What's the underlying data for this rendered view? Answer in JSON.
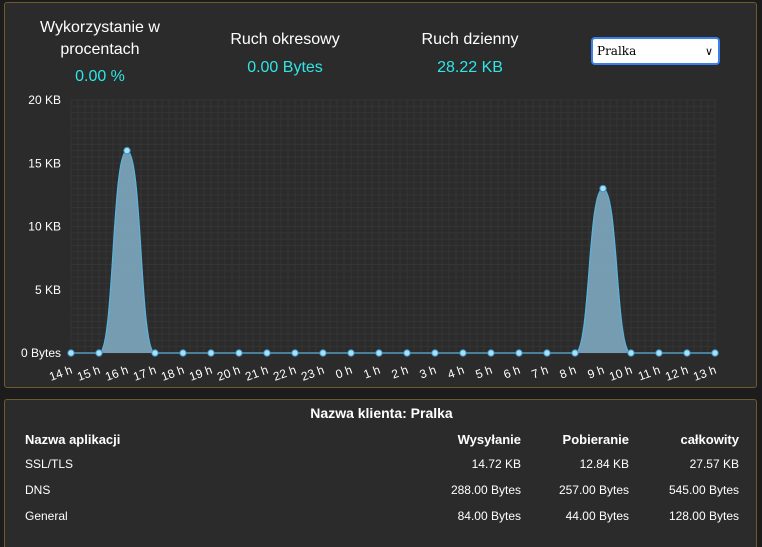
{
  "stats": {
    "percent_label": "Wykorzystanie w procentach",
    "percent_value": "0.00 %",
    "period_label": "Ruch okresowy",
    "period_value": "0.00 Bytes",
    "daily_label": "Ruch dzienny",
    "daily_value": "28.22 KB"
  },
  "client_select": {
    "selected": "Pralka"
  },
  "colors": {
    "accent": "#2ee6e6",
    "area_fill": "#7ea8c0",
    "line": "#5ab4dc",
    "point": "#a8e0f8",
    "border": "#6e5a2c"
  },
  "chart_data": {
    "type": "area",
    "categories": [
      "14 h",
      "15 h",
      "16 h",
      "17 h",
      "18 h",
      "19 h",
      "20 h",
      "21 h",
      "22 h",
      "23 h",
      "0 h",
      "1 h",
      "2 h",
      "3 h",
      "4 h",
      "5 h",
      "6 h",
      "7 h",
      "8 h",
      "9 h",
      "10 h",
      "11 h",
      "12 h",
      "13 h"
    ],
    "values": [
      0,
      0,
      16,
      0,
      0,
      0,
      0,
      0,
      0,
      0,
      0,
      0,
      0,
      0,
      0,
      0,
      0,
      0,
      0,
      13,
      0,
      0,
      0,
      0
    ],
    "unit": "KB",
    "y_ticks": [
      "0 Bytes",
      "5 KB",
      "10 KB",
      "15 KB",
      "20 KB"
    ],
    "ylim": [
      0,
      20
    ],
    "grid": true
  },
  "table": {
    "title": "Nazwa klienta: Pralka",
    "headers": [
      "Nazwa aplikacji",
      "Wysyłanie",
      "Pobieranie",
      "całkowity"
    ],
    "rows": [
      [
        "SSL/TLS",
        "14.72 KB",
        "12.84 KB",
        "27.57 KB"
      ],
      [
        "DNS",
        "288.00 Bytes",
        "257.00 Bytes",
        "545.00 Bytes"
      ],
      [
        "General",
        "84.00 Bytes",
        "44.00 Bytes",
        "128.00 Bytes"
      ]
    ]
  }
}
